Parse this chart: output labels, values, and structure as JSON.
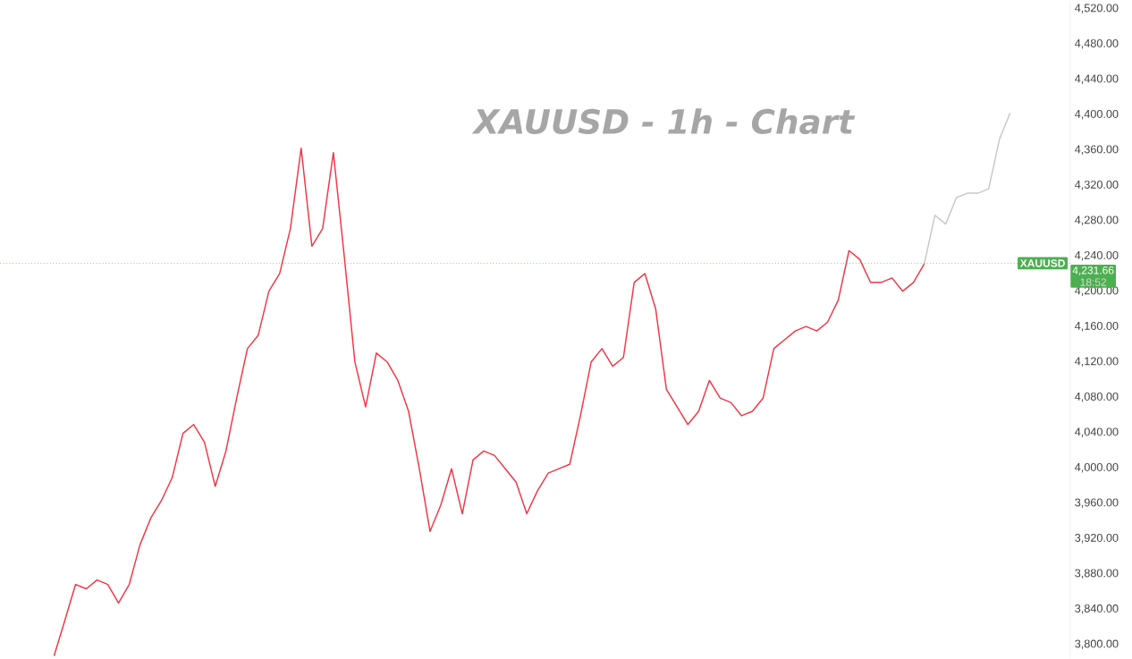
{
  "chart_data": {
    "type": "line",
    "title": "XAUUSD - 1h - Chart",
    "categories": [
      null,
      null,
      null,
      null,
      null,
      null,
      null,
      null,
      null,
      null,
      null,
      null,
      null,
      null,
      null,
      null,
      null,
      null,
      null,
      null,
      null,
      null,
      null,
      null,
      null,
      null,
      null,
      null,
      null,
      null,
      null,
      null,
      null,
      null,
      null,
      null,
      null,
      null,
      null,
      null,
      null,
      null,
      null,
      null,
      null,
      null,
      null,
      null,
      null,
      null,
      null,
      null,
      null,
      null,
      null,
      null,
      null,
      null,
      null,
      null,
      null,
      null,
      null,
      null,
      null,
      null,
      null,
      null,
      null,
      null,
      null,
      null,
      null,
      null,
      null,
      null,
      null,
      null,
      null,
      null,
      null,
      null,
      null,
      null,
      null,
      null,
      null,
      null,
      null,
      null
    ],
    "series": [
      {
        "color": "#f23645",
        "values": [
          3787,
          3827,
          3868,
          3863,
          3873,
          3868,
          3847,
          3868,
          3913,
          3943,
          3963,
          3989,
          4039,
          4049,
          4029,
          3979,
          4019,
          4079,
          4135,
          4150,
          4200,
          4220,
          4271,
          4362,
          4251,
          4271,
          4357,
          4241,
          4120,
          4069,
          4130,
          4120,
          4099,
          4064,
          3999,
          3928,
          3958,
          3999,
          3948,
          4009,
          4019,
          4014,
          3999,
          3984,
          3948,
          3974,
          3994,
          3999,
          4004,
          4059,
          4120,
          4135,
          4115,
          4125,
          4210,
          4220,
          4180,
          4089,
          4069,
          4049,
          4064,
          4099,
          4079,
          4074,
          4059,
          4064,
          4079,
          4135,
          4145,
          4155,
          4160,
          4155,
          4165,
          4190,
          4246,
          4236,
          4210,
          4210,
          4215,
          4200,
          4210,
          4231,
          null,
          null,
          null,
          null,
          null,
          null,
          null,
          null
        ]
      },
      {
        "color": "#c8c8c8",
        "values": [
          null,
          null,
          null,
          null,
          null,
          null,
          null,
          null,
          null,
          null,
          null,
          null,
          null,
          null,
          null,
          null,
          null,
          null,
          null,
          null,
          null,
          null,
          null,
          null,
          null,
          null,
          null,
          null,
          null,
          null,
          null,
          null,
          null,
          null,
          null,
          null,
          null,
          null,
          null,
          null,
          null,
          null,
          null,
          null,
          null,
          null,
          null,
          null,
          null,
          null,
          null,
          null,
          null,
          null,
          null,
          null,
          null,
          null,
          null,
          null,
          null,
          null,
          null,
          null,
          null,
          null,
          null,
          null,
          null,
          null,
          null,
          null,
          null,
          null,
          null,
          null,
          null,
          null,
          null,
          null,
          null,
          4231,
          4286,
          4276,
          4306,
          4311,
          4311,
          4316,
          4372,
          4402
        ]
      }
    ],
    "ylim": [
      3784,
      4526
    ],
    "yticks": [
      {
        "value": 3800,
        "label": "3,800.00"
      },
      {
        "value": 3840,
        "label": "3,840.00"
      },
      {
        "value": 3880,
        "label": "3,880.00"
      },
      {
        "value": 3920,
        "label": "3,920.00"
      },
      {
        "value": 3960,
        "label": "3,960.00"
      },
      {
        "value": 4000,
        "label": "4,000.00"
      },
      {
        "value": 4040,
        "label": "4,040.00"
      },
      {
        "value": 4080,
        "label": "4,080.00"
      },
      {
        "value": 4120,
        "label": "4,120.00"
      },
      {
        "value": 4160,
        "label": "4,160.00"
      },
      {
        "value": 4200,
        "label": "4,200.00"
      },
      {
        "value": 4240,
        "label": "4,240.00"
      },
      {
        "value": 4280,
        "label": "4,280.00"
      },
      {
        "value": 4320,
        "label": "4,320.00"
      },
      {
        "value": 4360,
        "label": "4,360.00"
      },
      {
        "value": 4400,
        "label": "4,400.00"
      },
      {
        "value": 4440,
        "label": "4,440.00"
      },
      {
        "value": 4480,
        "label": "4,480.00"
      },
      {
        "value": 4520,
        "label": "4,520.00"
      }
    ],
    "ref_lines": [
      {
        "axis": "y",
        "value": 4231.66,
        "label": "4,231.66",
        "color": "#4caf50",
        "line_style": "dotted"
      }
    ],
    "annotations": [
      "XAUUSD",
      "18:52"
    ],
    "line_style": "solid",
    "grid": false
  }
}
